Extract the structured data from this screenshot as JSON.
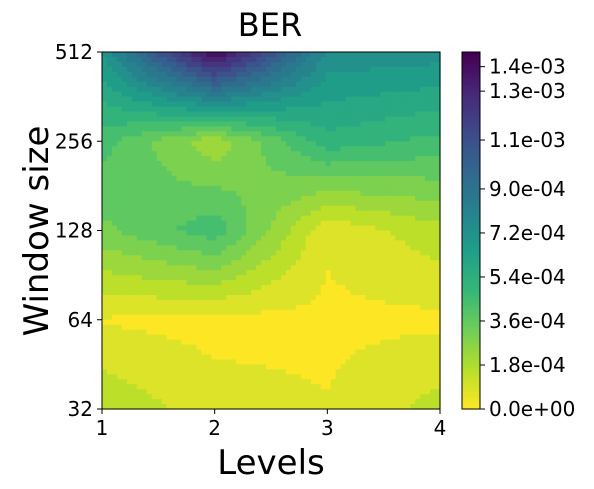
{
  "chart_data": {
    "type": "heatmap",
    "subtype": "filled-contour",
    "title": "BER",
    "xlabel": "Levels",
    "ylabel": "Window size",
    "x": [
      1,
      2,
      3,
      4
    ],
    "y": [
      32,
      64,
      128,
      256,
      512
    ],
    "yscale": "log2",
    "xlim": [
      1,
      4
    ],
    "ylim": [
      32,
      512
    ],
    "x_tick_labels": [
      "1",
      "2",
      "3",
      "4"
    ],
    "y_tick_labels": [
      "32",
      "64",
      "128",
      "256",
      "512"
    ],
    "z": [
      [
        0.00017,
        7e-05,
        4e-05,
        0.00014
      ],
      [
        3e-05,
        1e-05,
        2e-05,
        2e-05
      ],
      [
        0.00031,
        0.00045,
        5e-05,
        0.00016
      ],
      [
        0.00043,
        0.0002,
        0.00052,
        0.00045
      ],
      [
        0.0007,
        0.00145,
        0.00075,
        0.00073
      ]
    ],
    "colormap": "viridis_r",
    "zlim": [
      0.0,
      0.00146
    ],
    "colorbar": {
      "ticks": [
        0.0,
        0.00018,
        0.00036,
        0.00054,
        0.00072,
        0.0009,
        0.0011,
        0.0013,
        0.0014
      ],
      "tick_labels": [
        "0.0e+00",
        "1.8e-04",
        "3.6e-04",
        "5.4e-04",
        "7.2e-04",
        "9.0e-04",
        "1.1e-03",
        "1.3e-03",
        "1.4e-03"
      ]
    }
  }
}
